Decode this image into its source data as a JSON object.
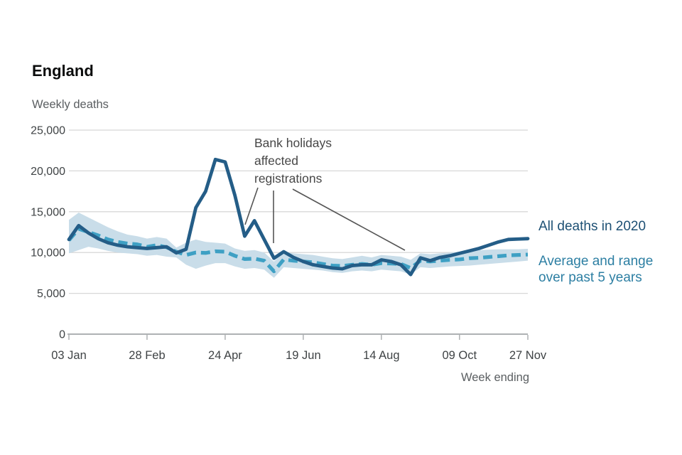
{
  "header": {
    "title": "England",
    "subtitle": "Weekly deaths"
  },
  "axes": {
    "x_title": "Week ending"
  },
  "annotation": {
    "lines": [
      "Bank holidays",
      "affected",
      "registrations"
    ],
    "leader_target_weeks": [
      19,
      22,
      36
    ]
  },
  "legend": {
    "all_deaths": "All deaths in 2020",
    "average_line1": "Average and range",
    "average_line2": "over past 5 years"
  },
  "colors": {
    "background": "#ffffff",
    "title_text": "#0b0c0c",
    "muted_text": "#5a5e61",
    "tick_text": "#3f4345",
    "annotation_text": "#474747",
    "leader_line": "#555555",
    "gridline": "#d8d8d8",
    "axis_line": "#aeb1b3",
    "line_2020": "#245d87",
    "legend_2020_text": "#1d5074",
    "line_average": "#3ea0c4",
    "legend_average_text": "#2d7fa3",
    "range_band": "#c9dde9"
  },
  "chart_data": {
    "type": "line",
    "title": "England",
    "ylabel": "Weekly deaths",
    "xlabel": "Week ending",
    "ylim": [
      0,
      25000
    ],
    "grid": "horizontal",
    "legend_position": "right",
    "n_weeks": 48,
    "y_tick_values": [
      25000,
      20000,
      15000,
      10000,
      5000,
      0
    ],
    "y_tick_labels": [
      "25,000",
      "20,000",
      "15,000",
      "10,000",
      "5,000",
      "0"
    ],
    "x_tick_labels": [
      "03 Jan",
      "28 Feb",
      "24 Apr",
      "19 Jun",
      "14 Aug",
      "09 Oct",
      "27 Nov"
    ],
    "x_tick_week_index": [
      1,
      9,
      17,
      25,
      33,
      41,
      48
    ],
    "series": [
      {
        "name": "All deaths in 2020",
        "style": "solid",
        "values": [
          11600,
          13300,
          12400,
          11700,
          11200,
          10900,
          10700,
          10600,
          10500,
          10600,
          10700,
          9950,
          10400,
          15500,
          17500,
          21400,
          21100,
          17000,
          12000,
          13900,
          11600,
          9300,
          10100,
          9400,
          8900,
          8500,
          8300,
          8100,
          8000,
          8400,
          8500,
          8500,
          9100,
          8900,
          8500,
          7300,
          9350,
          9000,
          9400,
          9600,
          9900,
          10200,
          10500,
          10900,
          11300,
          11600,
          11650,
          11700
        ]
      },
      {
        "name": "Average over past 5 years",
        "style": "dashed",
        "values": [
          11500,
          12900,
          12500,
          12100,
          11600,
          11300,
          11100,
          11000,
          10700,
          10900,
          10650,
          10100,
          9700,
          10000,
          9950,
          10150,
          10100,
          9600,
          9200,
          9250,
          9000,
          7700,
          9150,
          9000,
          8900,
          8800,
          8600,
          8400,
          8350,
          8500,
          8600,
          8500,
          8700,
          8650,
          8600,
          8100,
          9000,
          8900,
          9000,
          9100,
          9150,
          9300,
          9350,
          9450,
          9550,
          9650,
          9700,
          9750
        ]
      },
      {
        "name": "5-year range (max)",
        "style": "band-upper",
        "values": [
          14000,
          14900,
          14300,
          13700,
          13100,
          12600,
          12200,
          12000,
          11700,
          11900,
          11700,
          10600,
          11200,
          11600,
          11300,
          11200,
          11100,
          10500,
          10200,
          10300,
          10000,
          8900,
          10100,
          9900,
          9800,
          9700,
          9500,
          9300,
          9200,
          9400,
          9600,
          9400,
          9700,
          9600,
          9500,
          9100,
          9900,
          9800,
          9900,
          10000,
          10100,
          10200,
          10300,
          10350,
          10400,
          10400,
          10400,
          10450
        ]
      },
      {
        "name": "5-year range (min)",
        "style": "band-lower",
        "values": [
          9900,
          10300,
          10700,
          10500,
          10200,
          10000,
          9900,
          9800,
          9600,
          9700,
          9500,
          9400,
          8500,
          8000,
          8400,
          8700,
          8700,
          8300,
          8000,
          8100,
          7900,
          6900,
          8200,
          8100,
          8000,
          7900,
          7800,
          7600,
          7500,
          7700,
          7800,
          7700,
          7900,
          7800,
          7700,
          7300,
          8200,
          8100,
          8200,
          8300,
          8350,
          8400,
          8500,
          8600,
          8700,
          8800,
          8900,
          9000
        ]
      }
    ]
  }
}
